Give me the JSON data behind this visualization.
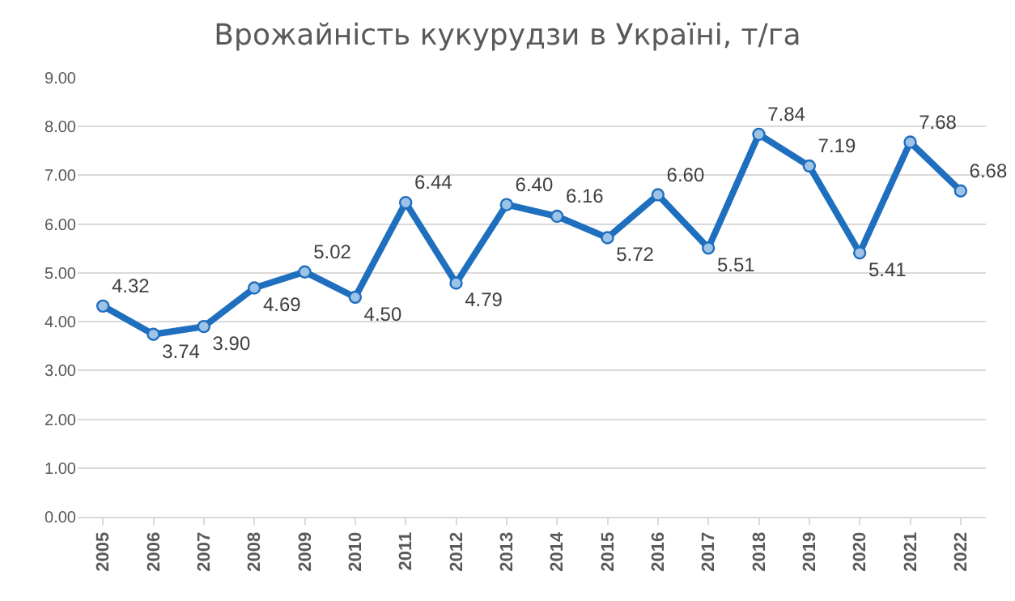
{
  "chart_data": {
    "type": "line",
    "title": "Врожайність кукурудзи в Україні, т/га",
    "categories": [
      "2005",
      "2006",
      "2007",
      "2008",
      "2009",
      "2010",
      "2011",
      "2012",
      "2013",
      "2014",
      "2015",
      "2016",
      "2017",
      "2018",
      "2019",
      "2020",
      "2021",
      "2022"
    ],
    "values": [
      4.32,
      3.74,
      3.9,
      4.69,
      5.02,
      4.5,
      6.44,
      4.79,
      6.4,
      6.16,
      5.72,
      6.6,
      5.51,
      7.84,
      7.19,
      5.41,
      7.68,
      6.68
    ],
    "value_labels": [
      "4.32",
      "3.74",
      "3.90",
      "4.69",
      "5.02",
      "4.50",
      "6.44",
      "4.79",
      "6.40",
      "6.16",
      "5.72",
      "6.60",
      "5.51",
      "7.84",
      "7.19",
      "5.41",
      "7.68",
      "6.68"
    ],
    "color": "#1f6fbf",
    "marker": "circle",
    "line_style": "solid",
    "ylim": [
      0,
      9
    ],
    "yticks": [
      {
        "value": 0,
        "label": "0.00"
      },
      {
        "value": 1,
        "label": "1.00"
      },
      {
        "value": 2,
        "label": "2.00"
      },
      {
        "value": 3,
        "label": "3.00"
      },
      {
        "value": 4,
        "label": "4.00"
      },
      {
        "value": 5,
        "label": "5.00"
      },
      {
        "value": 6,
        "label": "6.00"
      },
      {
        "value": 7,
        "label": "7.00"
      },
      {
        "value": 8,
        "label": "8.00"
      },
      {
        "value": 9,
        "label": "9.00"
      }
    ],
    "grid": "y",
    "legend": false
  }
}
